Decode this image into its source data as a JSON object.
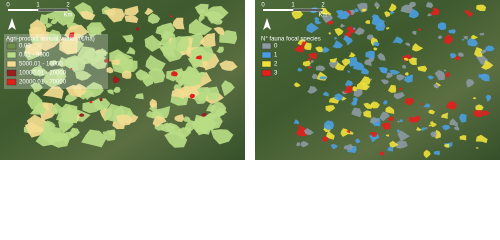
{
  "panels": [
    {
      "scale": {
        "labels": [
          "0",
          "1",
          "2"
        ],
        "unit": "Km"
      },
      "legend": {
        "title": "Agri-product annual values (€/ha)",
        "items": [
          {
            "label": "0.00",
            "color": "#6f8f4a"
          },
          {
            "label": "0.01 - 5000",
            "color": "#b9dc86"
          },
          {
            "label": "5000.01 - 10000",
            "color": "#f2dc90"
          },
          {
            "label": "10000.01 - 20000",
            "color": "#9a1f1f"
          },
          {
            "label": "20000.01 - 70000",
            "color": "#e0201c"
          }
        ]
      }
    },
    {
      "scale": {
        "labels": [
          "0",
          "1",
          "2"
        ],
        "unit": "Km"
      },
      "legend": {
        "title": "N° fauna focal species",
        "items": [
          {
            "label": "0",
            "color": "#8c9aa3"
          },
          {
            "label": "1",
            "color": "#4a9ee0"
          },
          {
            "label": "2",
            "color": "#f0e23a"
          },
          {
            "label": "3",
            "color": "#e3201d"
          }
        ]
      }
    }
  ]
}
